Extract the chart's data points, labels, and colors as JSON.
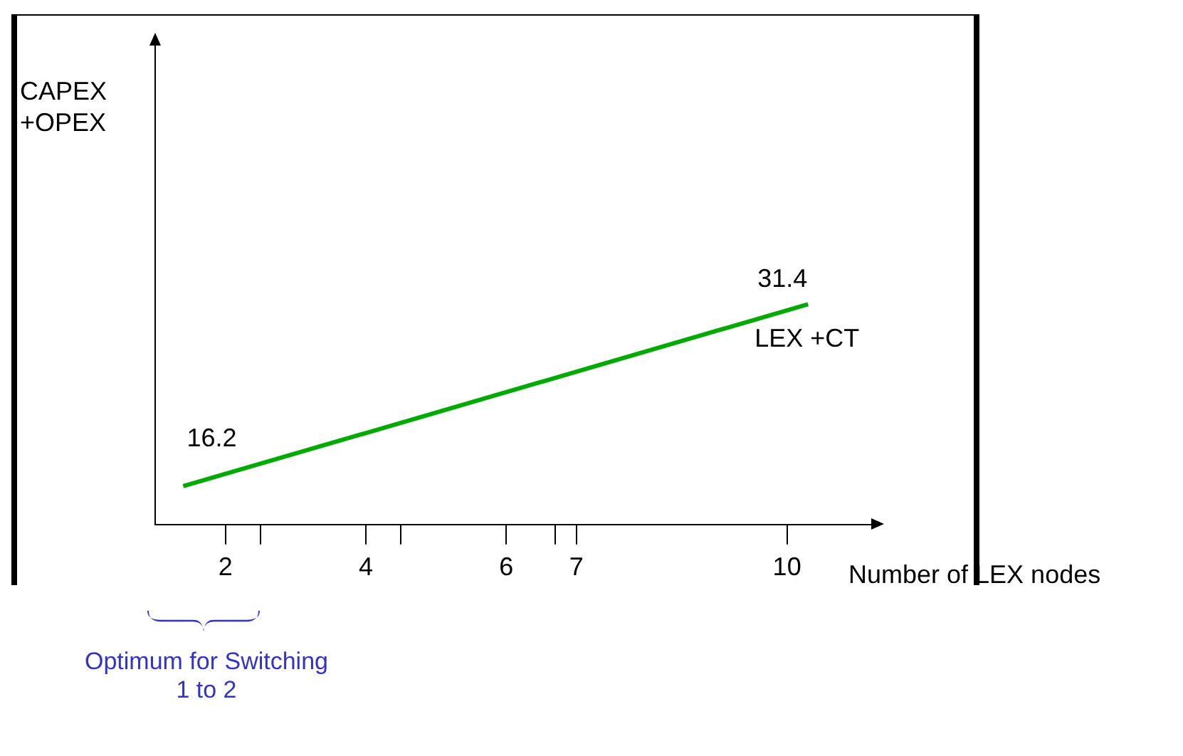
{
  "chart_data": {
    "type": "line",
    "xlabel": "Number of LEX nodes",
    "ylabel": "CAPEX +OPEX",
    "series": [
      {
        "name": "LEX +CT",
        "color": "#00aa00",
        "x": [
          1.4,
          10.3
        ],
        "values": [
          16.2,
          31.4
        ]
      }
    ],
    "xlim": [
      1,
      11.2
    ],
    "xticks": [
      2,
      {
        "value": 2.5,
        "label": null
      },
      4,
      {
        "value": 4.5,
        "label": null
      },
      6,
      {
        "value": 6.7,
        "label": null
      },
      7,
      10
    ],
    "ylim": [
      13,
      53
    ],
    "tick_labels": "x",
    "data_labels": true,
    "grid": false,
    "legend": false,
    "marker": "none",
    "annotations": [
      "Optimum for Switching\n1 to 2"
    ]
  }
}
